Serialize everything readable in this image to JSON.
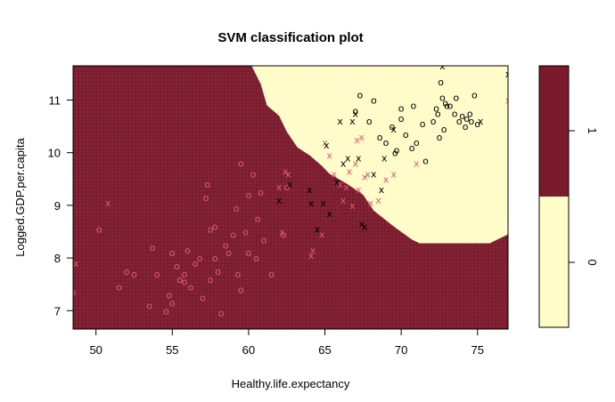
{
  "chart_data": {
    "type": "scatter",
    "title": "SVM classification plot",
    "xlabel": "Healthy.life.expectancy",
    "ylabel": "Logged.GDP.per.capita",
    "xlim": [
      48.5,
      77
    ],
    "ylim": [
      6.65,
      11.65
    ],
    "x_ticks": [
      "50",
      "55",
      "60",
      "65",
      "70",
      "75"
    ],
    "y_ticks": [
      "7",
      "8",
      "9",
      "10",
      "11"
    ],
    "classes": [
      {
        "label": "1",
        "region_color": "#7a1a2b"
      },
      {
        "label": "0",
        "region_color": "#fffcc8"
      }
    ],
    "legend_ticks": [
      "1",
      "0"
    ],
    "point_colors": {
      "class_1": "#e05a6e",
      "class_0": "#000000"
    },
    "decision_boundary": [
      [
        60.2,
        11.65
      ],
      [
        60.8,
        11.3
      ],
      [
        61.2,
        10.9
      ],
      [
        62.0,
        10.7
      ],
      [
        62.5,
        10.4
      ],
      [
        63.2,
        10.1
      ],
      [
        64.0,
        9.95
      ],
      [
        64.8,
        9.75
      ],
      [
        65.3,
        9.6
      ],
      [
        66.5,
        9.4
      ],
      [
        67.5,
        9.2
      ],
      [
        68.2,
        8.9
      ],
      [
        69.5,
        8.6
      ],
      [
        70.7,
        8.35
      ],
      [
        71.2,
        8.28
      ],
      [
        75.8,
        8.28
      ],
      [
        77,
        8.45
      ]
    ],
    "points_class_1_circle": [
      [
        50.2,
        8.55
      ],
      [
        51.5,
        7.45
      ],
      [
        52.0,
        7.75
      ],
      [
        52.5,
        7.7
      ],
      [
        53.5,
        7.1
      ],
      [
        53.7,
        8.2
      ],
      [
        54.0,
        7.7
      ],
      [
        54.6,
        7.0
      ],
      [
        54.8,
        7.3
      ],
      [
        55.0,
        8.1
      ],
      [
        55.0,
        7.15
      ],
      [
        55.3,
        7.85
      ],
      [
        55.5,
        7.6
      ],
      [
        55.8,
        7.55
      ],
      [
        55.8,
        7.7
      ],
      [
        56.0,
        8.15
      ],
      [
        56.2,
        7.45
      ],
      [
        56.5,
        7.9
      ],
      [
        56.8,
        8.0
      ],
      [
        57.0,
        7.25
      ],
      [
        57.2,
        9.15
      ],
      [
        57.3,
        9.4
      ],
      [
        57.5,
        7.6
      ],
      [
        57.5,
        8.55
      ],
      [
        57.8,
        8.6
      ],
      [
        57.8,
        8.0
      ],
      [
        58.0,
        7.75
      ],
      [
        58.2,
        6.95
      ],
      [
        58.5,
        8.25
      ],
      [
        58.7,
        8.1
      ],
      [
        59.0,
        8.45
      ],
      [
        59.2,
        8.95
      ],
      [
        59.3,
        7.7
      ],
      [
        59.5,
        9.8
      ],
      [
        59.5,
        7.4
      ],
      [
        59.8,
        8.5
      ],
      [
        60.0,
        9.2
      ],
      [
        60.0,
        8.1
      ],
      [
        60.3,
        9.6
      ],
      [
        60.5,
        8.0
      ],
      [
        60.6,
        8.75
      ],
      [
        60.8,
        9.25
      ],
      [
        61.0,
        8.35
      ],
      [
        61.5,
        7.7
      ],
      [
        62.3,
        8.45
      ],
      [
        62.5,
        9.35
      ],
      [
        48.5,
        7.35
      ]
    ],
    "points_class_1_x": [
      [
        48.7,
        7.9
      ],
      [
        50.8,
        9.05
      ],
      [
        62.0,
        9.35
      ],
      [
        62.2,
        8.5
      ],
      [
        62.4,
        9.65
      ],
      [
        62.6,
        9.6
      ],
      [
        64.1,
        8.05
      ],
      [
        64.2,
        8.15
      ],
      [
        64.8,
        8.45
      ],
      [
        65.0,
        10.2
      ],
      [
        65.3,
        9.95
      ],
      [
        65.6,
        9.6
      ],
      [
        66.0,
        9.4
      ],
      [
        66.2,
        9.1
      ],
      [
        66.4,
        9.35
      ],
      [
        66.6,
        9.65
      ],
      [
        66.8,
        9.0
      ],
      [
        67.0,
        9.8
      ],
      [
        67.1,
        10.25
      ],
      [
        67.2,
        9.3
      ],
      [
        67.4,
        10.3
      ],
      [
        67.6,
        9.55
      ],
      [
        67.8,
        9.6
      ],
      [
        68.0,
        9.05
      ],
      [
        68.5,
        9.1
      ],
      [
        69.0,
        9.5
      ],
      [
        69.5,
        9.6
      ],
      [
        71.0,
        9.8
      ],
      [
        77.0,
        11.0
      ]
    ],
    "points_class_0_circle": [
      [
        67.0,
        10.8
      ],
      [
        67.3,
        11.1
      ],
      [
        67.9,
        10.6
      ],
      [
        68.2,
        11.0
      ],
      [
        68.6,
        10.3
      ],
      [
        69.0,
        10.2
      ],
      [
        69.4,
        10.5
      ],
      [
        69.6,
        10.0
      ],
      [
        69.7,
        10.05
      ],
      [
        70.0,
        10.65
      ],
      [
        70.0,
        10.85
      ],
      [
        70.3,
        10.35
      ],
      [
        70.7,
        10.1
      ],
      [
        71.0,
        10.2
      ],
      [
        71.4,
        10.55
      ],
      [
        71.6,
        9.85
      ],
      [
        72.1,
        10.6
      ],
      [
        72.3,
        10.85
      ],
      [
        72.5,
        10.3
      ],
      [
        72.6,
        11.35
      ],
      [
        72.7,
        11.05
      ],
      [
        72.8,
        10.45
      ],
      [
        73.0,
        10.9
      ],
      [
        73.2,
        10.9
      ],
      [
        73.5,
        10.75
      ],
      [
        73.8,
        10.6
      ],
      [
        74.0,
        10.7
      ],
      [
        74.2,
        10.5
      ],
      [
        74.3,
        10.65
      ],
      [
        74.5,
        10.75
      ],
      [
        74.6,
        10.6
      ],
      [
        74.8,
        11.1
      ],
      [
        75.0,
        10.55
      ],
      [
        72.9,
        10.95
      ],
      [
        72.4,
        10.75
      ],
      [
        73.6,
        11.05
      ],
      [
        70.8,
        10.9
      ]
    ],
    "points_class_0_x": [
      [
        62.0,
        9.1
      ],
      [
        62.7,
        9.4
      ],
      [
        64.0,
        9.3
      ],
      [
        64.1,
        9.05
      ],
      [
        64.5,
        8.55
      ],
      [
        64.9,
        9.05
      ],
      [
        65.1,
        10.15
      ],
      [
        65.3,
        8.85
      ],
      [
        65.8,
        9.45
      ],
      [
        66.2,
        9.8
      ],
      [
        66.5,
        9.9
      ],
      [
        67.2,
        9.9
      ],
      [
        67.4,
        8.65
      ],
      [
        67.6,
        8.6
      ],
      [
        68.2,
        9.6
      ],
      [
        68.7,
        9.3
      ],
      [
        68.9,
        9.9
      ],
      [
        66.0,
        10.6
      ],
      [
        66.8,
        10.6
      ],
      [
        67.0,
        10.75
      ],
      [
        72.7,
        11.65
      ],
      [
        77.0,
        11.5
      ],
      [
        75.2,
        10.6
      ],
      [
        69.5,
        10.45
      ]
    ]
  }
}
